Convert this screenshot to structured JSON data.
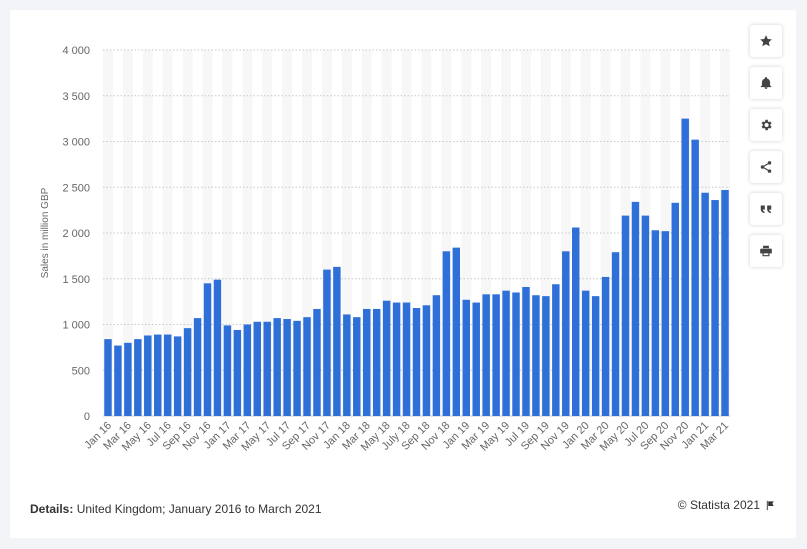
{
  "chart_data": {
    "type": "bar",
    "ylabel": "Sales in million GBP",
    "ylim": [
      0,
      4000
    ],
    "yticks": [
      0,
      500,
      1000,
      1500,
      2000,
      2500,
      3000,
      3500,
      4000
    ],
    "ytick_labels": [
      "0",
      "500",
      "1 000",
      "1 500",
      "2 000",
      "2 500",
      "3 000",
      "3 500",
      "4 000"
    ],
    "grid": "horizontal dotted",
    "bar_color": "#2f6fd8",
    "categories": [
      "Jan 16",
      "Feb 16",
      "Mar 16",
      "Apr 16",
      "May 16",
      "Jun 16",
      "Jul 16",
      "Aug 16",
      "Sep 16",
      "Oct 16",
      "Nov 16",
      "Dec 16",
      "Jan 17",
      "Feb 17",
      "Mar 17",
      "Apr 17",
      "May 17",
      "Jun 17",
      "Jul 17",
      "Aug 17",
      "Sep 17",
      "Oct 17",
      "Nov 17",
      "Dec 17",
      "Jan 18",
      "Feb 18",
      "Mar 18",
      "Apr 18",
      "May 18",
      "Jun 18",
      "July 18",
      "Aug 18",
      "Sep 18",
      "Oct 18",
      "Nov 18",
      "Dec 18",
      "Jan 19",
      "Feb 19",
      "Mar 19",
      "Apr 19",
      "May 19",
      "Jun 19",
      "Jul 19",
      "Aug 19",
      "Sep 19",
      "Oct 19",
      "Nov 19",
      "Dec 19",
      "Jan 20",
      "Feb 20",
      "Mar 20",
      "Apr 20",
      "May 20",
      "Jun 20",
      "Jul 20",
      "Aug 20",
      "Sep 20",
      "Oct 20",
      "Nov 20",
      "Dec 20",
      "Jan 21",
      "Feb 21",
      "Mar 21"
    ],
    "xtick_labels": [
      "Jan 16",
      "",
      "Mar 16",
      "",
      "May 16",
      "",
      "Jul 16",
      "",
      "Sep 16",
      "",
      "Nov 16",
      "",
      "Jan 17",
      "",
      "Mar 17",
      "",
      "May 17",
      "",
      "Jul 17",
      "",
      "Sep 17",
      "",
      "Nov 17",
      "",
      "Jan 18",
      "",
      "Mar 18",
      "",
      "May 18",
      "",
      "July 18",
      "",
      "Sep 18",
      "",
      "Nov 18",
      "",
      "Jan 19",
      "",
      "Mar 19",
      "",
      "May 19",
      "",
      "Jul 19",
      "",
      "Sep 19",
      "",
      "Nov 19",
      "",
      "Jan 20",
      "",
      "Mar 20",
      "",
      "May 20",
      "",
      "Jul 20",
      "",
      "Sep 20",
      "",
      "Nov 20",
      "",
      "Jan 21",
      "",
      "Mar 21"
    ],
    "values": [
      840,
      770,
      800,
      840,
      880,
      890,
      890,
      870,
      960,
      1070,
      1450,
      1490,
      990,
      940,
      1000,
      1030,
      1030,
      1070,
      1060,
      1040,
      1080,
      1170,
      1600,
      1630,
      1110,
      1080,
      1170,
      1170,
      1260,
      1240,
      1240,
      1180,
      1210,
      1320,
      1800,
      1840,
      1270,
      1240,
      1330,
      1330,
      1370,
      1350,
      1410,
      1320,
      1310,
      1440,
      1800,
      2060,
      1370,
      1310,
      1520,
      1790,
      2190,
      2340,
      2190,
      2030,
      2020,
      2330,
      3250,
      3020,
      2440,
      2360,
      2470
    ]
  },
  "toolbar": {
    "items": [
      {
        "icon": "star-icon"
      },
      {
        "icon": "bell-icon"
      },
      {
        "icon": "gear-icon"
      },
      {
        "icon": "share-icon"
      },
      {
        "icon": "quote-icon"
      },
      {
        "icon": "print-icon"
      }
    ]
  },
  "footer": {
    "details_label": "Details:",
    "details_text": "United Kingdom; January 2016 to March 2021",
    "copyright": "© Statista 2021"
  }
}
